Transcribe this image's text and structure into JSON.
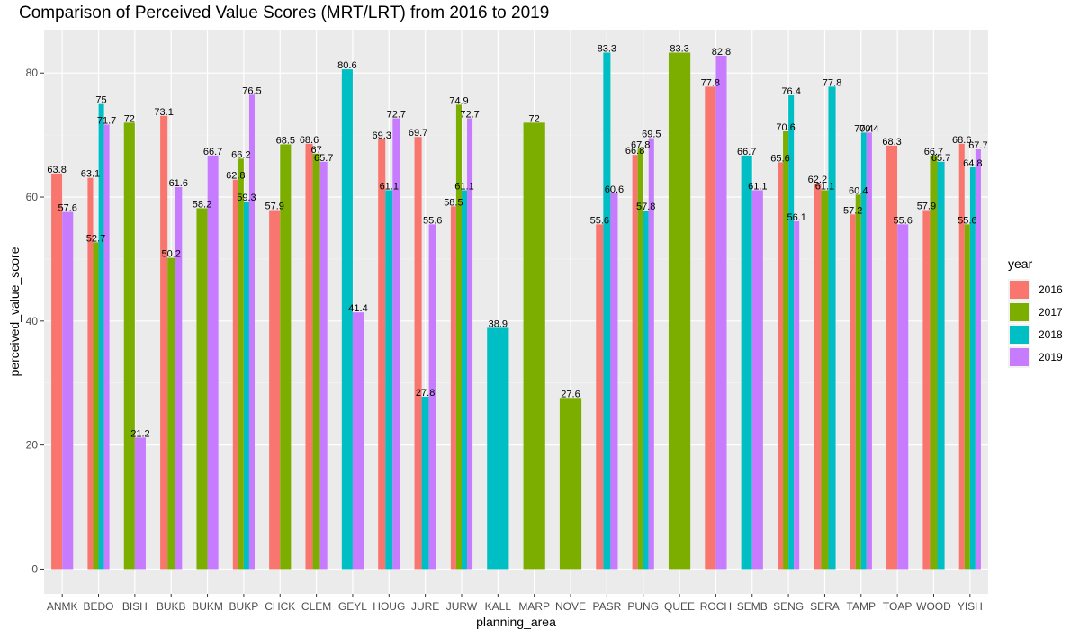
{
  "chart_data": {
    "type": "bar",
    "title": "Comparison of Perceived Value Scores (MRT/LRT) from 2016 to 2019",
    "xlabel": "planning_area",
    "ylabel": "perceived_value_score",
    "ylim": [
      -4,
      87
    ],
    "yticks": [
      0,
      20,
      40,
      60,
      80
    ],
    "grid": true,
    "legend_title": "year",
    "legend_position": "right",
    "categories": [
      "ANMK",
      "BEDO",
      "BISH",
      "BUKB",
      "BUKM",
      "BUKP",
      "CHCK",
      "CLEM",
      "GEYL",
      "HOUG",
      "JURE",
      "JURW",
      "KALL",
      "MARP",
      "NOVE",
      "PASR",
      "PUNG",
      "QUEE",
      "ROCH",
      "SEMB",
      "SENG",
      "SERA",
      "TAMP",
      "TOAP",
      "WOOD",
      "YISH"
    ],
    "series": [
      {
        "name": "2016",
        "color": "#F8766D",
        "values": [
          63.8,
          63.1,
          null,
          73.1,
          null,
          62.8,
          57.9,
          68.6,
          null,
          69.3,
          69.7,
          58.5,
          null,
          null,
          null,
          55.6,
          66.8,
          null,
          77.8,
          null,
          65.6,
          62.2,
          57.2,
          68.3,
          57.9,
          68.6
        ]
      },
      {
        "name": "2017",
        "color": "#7CAE00",
        "values": [
          null,
          52.7,
          72,
          50.2,
          58.2,
          66.2,
          68.5,
          67,
          null,
          null,
          null,
          74.9,
          null,
          72,
          27.6,
          null,
          67.8,
          83.3,
          null,
          null,
          70.6,
          61.1,
          60.4,
          null,
          66.7,
          55.6
        ]
      },
      {
        "name": "2018",
        "color": "#00BFC4",
        "values": [
          null,
          75,
          null,
          null,
          null,
          59.3,
          null,
          null,
          80.6,
          61.1,
          27.8,
          61.1,
          38.9,
          null,
          null,
          83.3,
          57.8,
          null,
          null,
          66.7,
          76.4,
          77.8,
          70.4,
          null,
          65.7,
          64.8
        ]
      },
      {
        "name": "2019",
        "color": "#C77CFF",
        "values": [
          57.6,
          71.7,
          21.2,
          61.6,
          66.7,
          76.5,
          null,
          65.7,
          41.4,
          72.7,
          55.6,
          72.7,
          null,
          null,
          null,
          60.6,
          69.5,
          null,
          82.8,
          61.1,
          56.1,
          null,
          70.4,
          55.6,
          null,
          67.7
        ]
      }
    ]
  }
}
